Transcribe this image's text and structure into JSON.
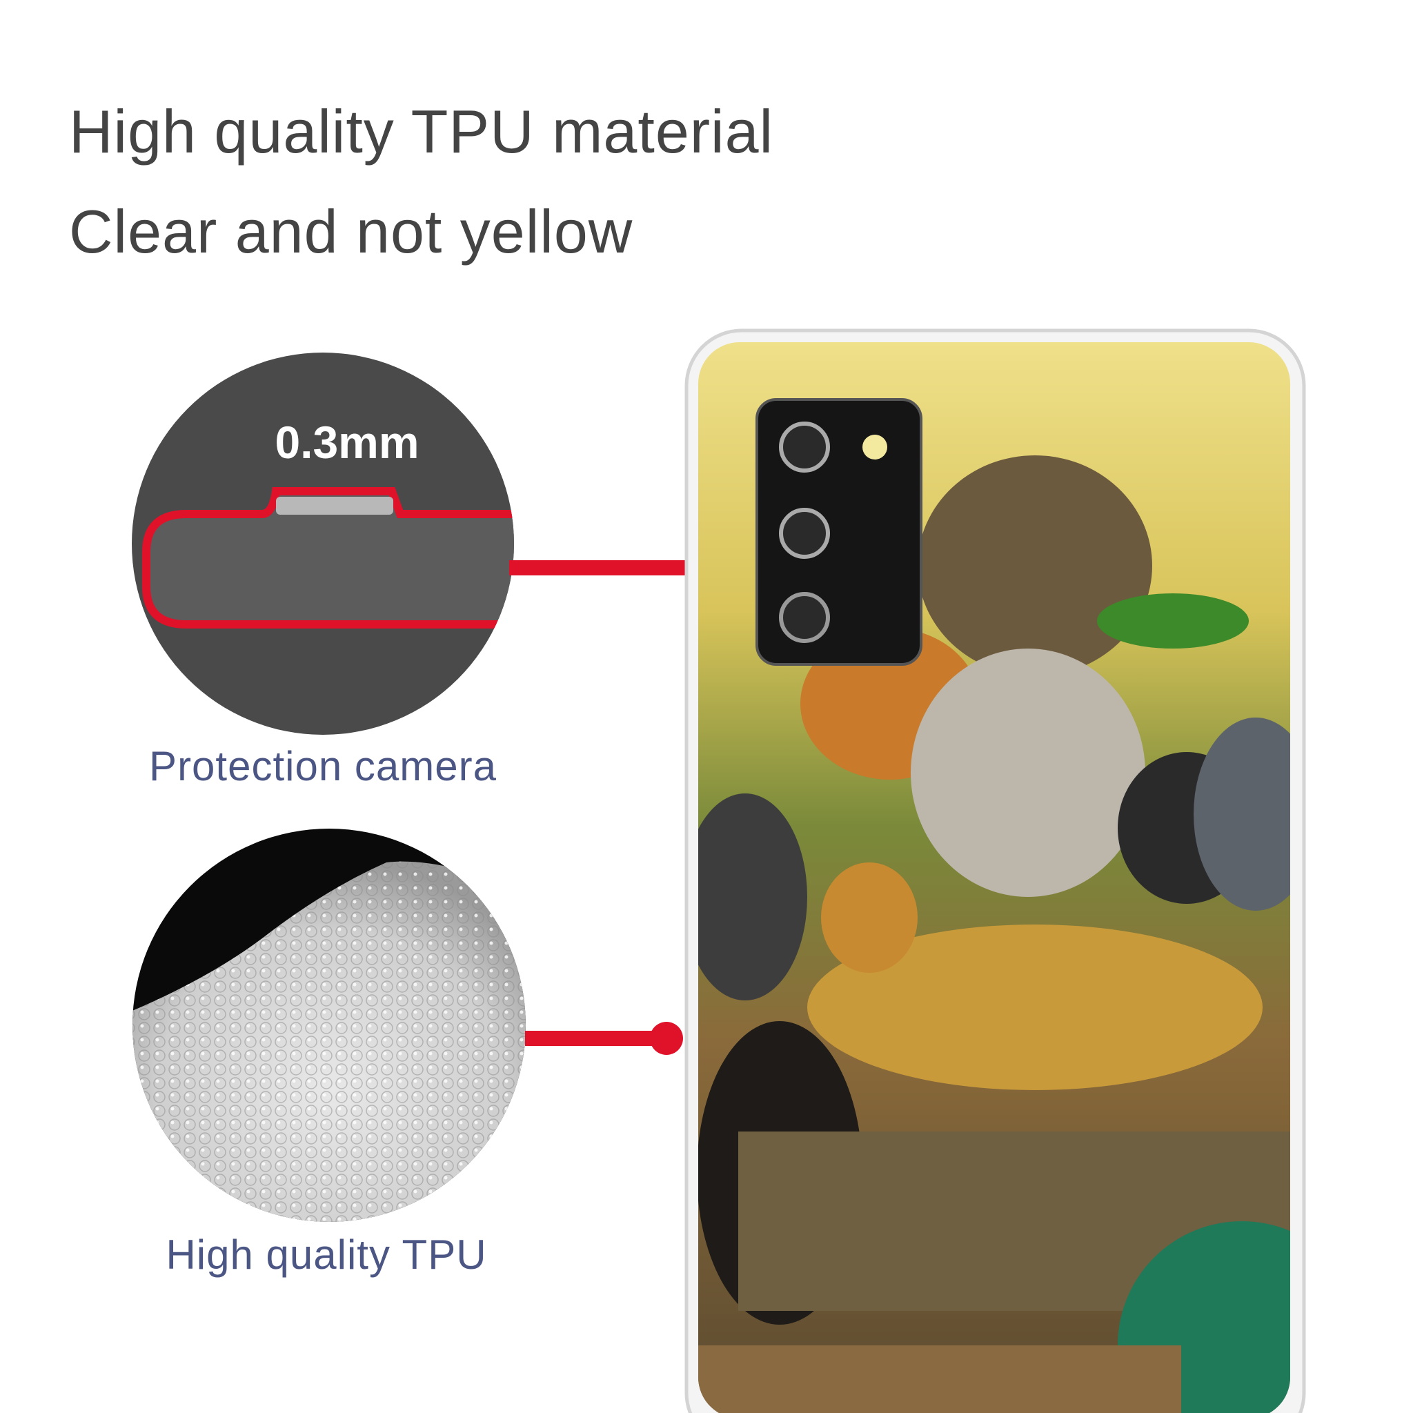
{
  "headline": {
    "line1": "High quality TPU material",
    "line2": "Clear and not yellow"
  },
  "callouts": [
    {
      "label": "0.3mm",
      "caption": "Protection camera"
    },
    {
      "caption": "High quality TPU"
    }
  ],
  "colors": {
    "accent_red": "#e0122a",
    "headline_text": "#444444",
    "caption_text": "#4b5684",
    "circle_dark": "#4a4a4a"
  }
}
